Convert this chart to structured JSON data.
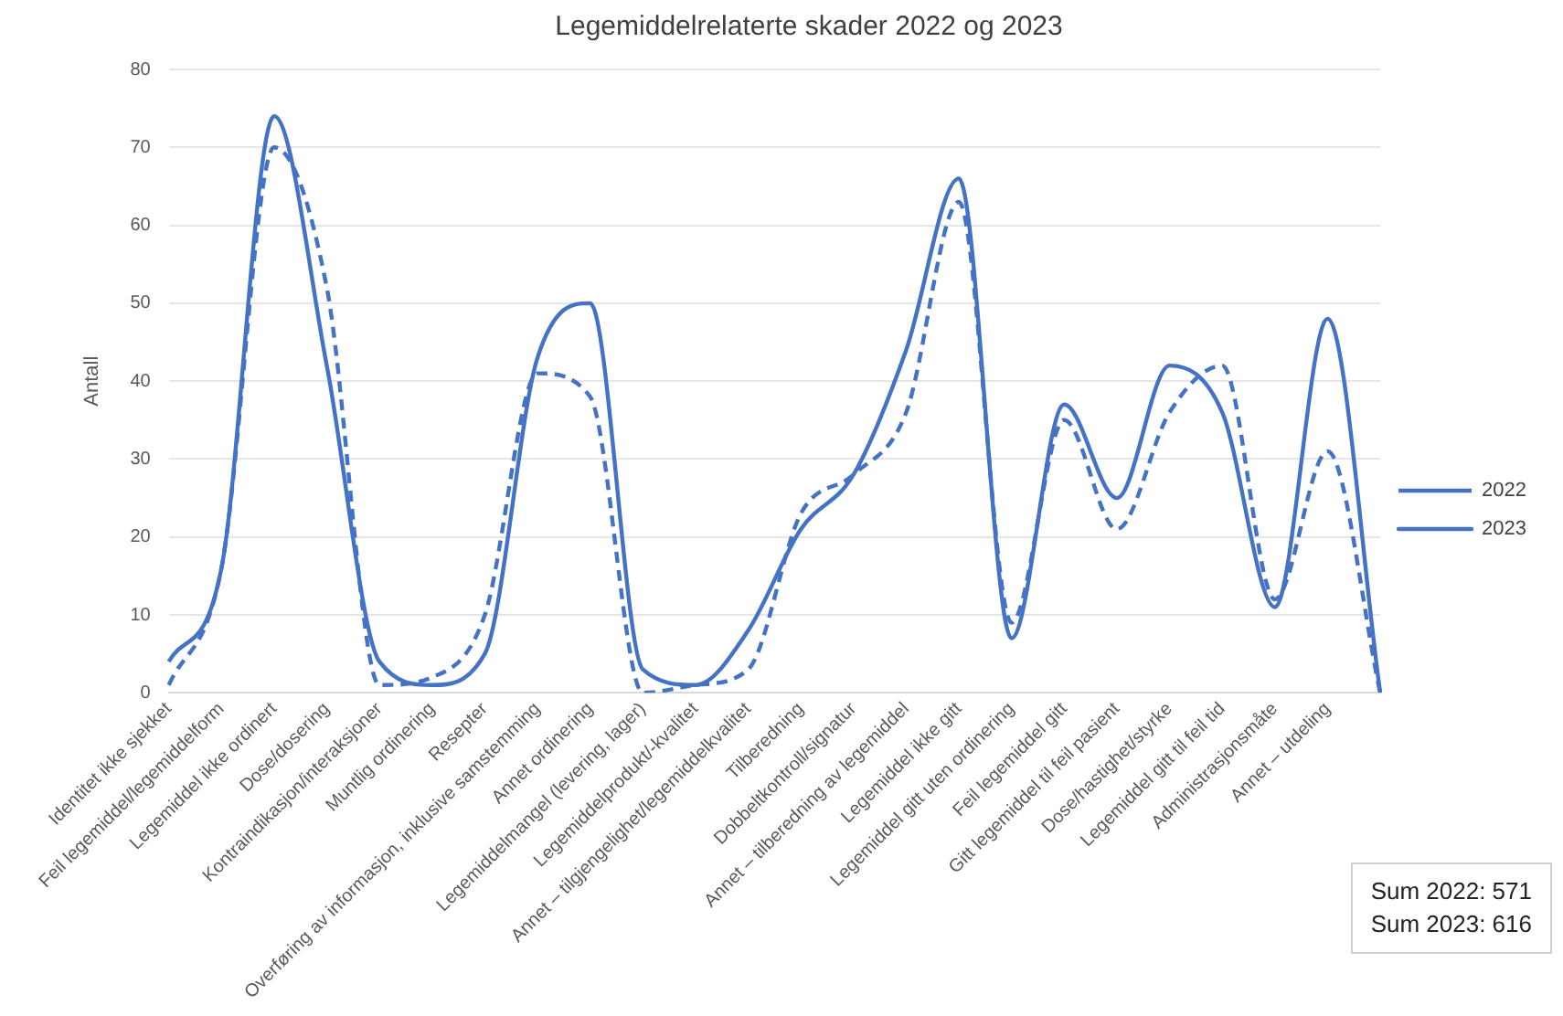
{
  "chart_data": {
    "type": "line",
    "title": "Legemiddelrelaterte skader 2022 og 2023",
    "ylabel": "Antall",
    "categories": [
      "Identitet ikke sjekket",
      "Feil legemiddel/legemiddelform",
      "Legemiddel ikke ordinert",
      "Dose/dosering",
      "Kontraindikasjon/interaksjoner",
      "Muntlig ordinering",
      "Resepter",
      "Overføring av informasjon, inklusive samstemming",
      "Annet ordinering",
      "Legemiddelmangel (levering, lager)",
      "Legemiddelprodukt/-kvalitet",
      "Annet – tilgjengelighet/legemiddelkvalitet",
      "Tilberedning",
      "Dobbeltkontroll/signatur",
      "Annet – tilberedning av legemiddel",
      "Legemiddel ikke gitt",
      "Legemiddel gitt uten ordinering",
      "Feil legemiddel gitt",
      "Gitt legemiddel til feil pasient",
      "Dose/hastighet/styrke",
      "Legemiddel gitt til feil tid",
      "Administrasjonsmåte",
      "Annet – utdeling",
      null
    ],
    "series": [
      {
        "name": "2022",
        "color": "#4472c4",
        "line_style": "dashed",
        "values": [
          1,
          16,
          70,
          52,
          1,
          2,
          10,
          41,
          38,
          0,
          1,
          3,
          23,
          28,
          36,
          63,
          9,
          35,
          21,
          36,
          42,
          12,
          31,
          0
        ]
      },
      {
        "name": "2023",
        "color": "#4472c4",
        "line_style": "solid",
        "values": [
          4,
          16,
          74,
          42,
          4,
          1,
          5,
          43,
          50,
          3,
          1,
          8,
          21,
          28,
          44,
          66,
          7,
          37,
          25,
          42,
          36,
          11,
          48,
          0
        ]
      }
    ],
    "ylim": [
      0,
      80
    ],
    "yticks": [
      0,
      10,
      20,
      30,
      40,
      50,
      60,
      70,
      80
    ],
    "grid": "y",
    "legend": "right",
    "marker": "none",
    "annotations": [
      "Sum 2022: 571",
      "Sum 2023: 616"
    ]
  }
}
